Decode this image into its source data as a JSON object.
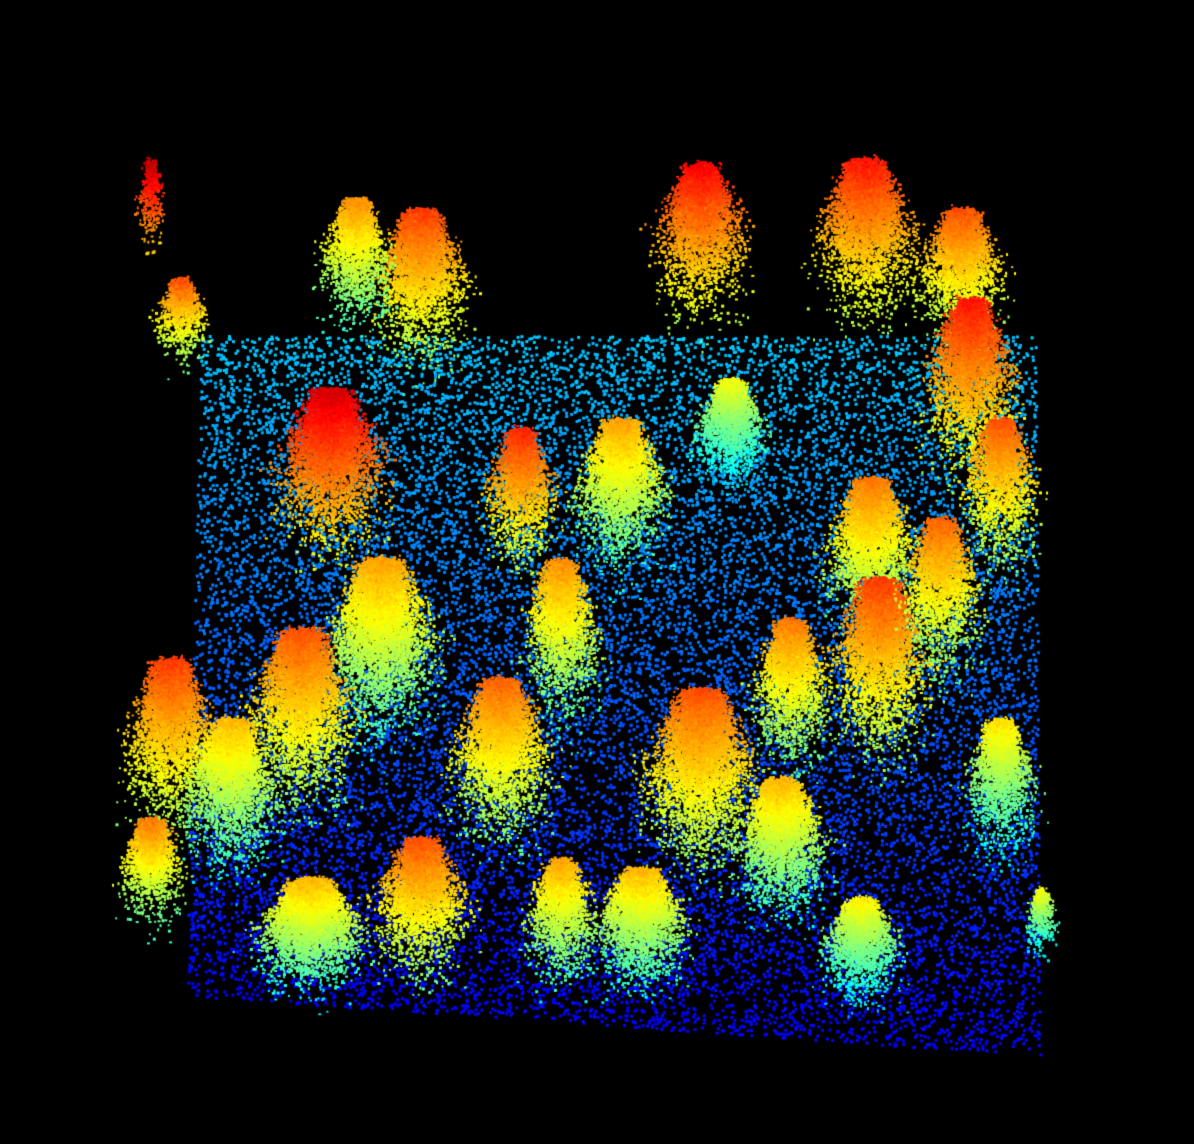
{
  "scene": {
    "kind": "lidar-point-cloud",
    "subject": "forest-plot-canopy",
    "background_color": "#000000",
    "colormap": "jet",
    "color_encodes": "height",
    "colormap_stops": [
      "#00008f",
      "#0000ff",
      "#0080ff",
      "#00ffff",
      "#80ff80",
      "#ffff00",
      "#ff8000",
      "#ff0000"
    ]
  }
}
